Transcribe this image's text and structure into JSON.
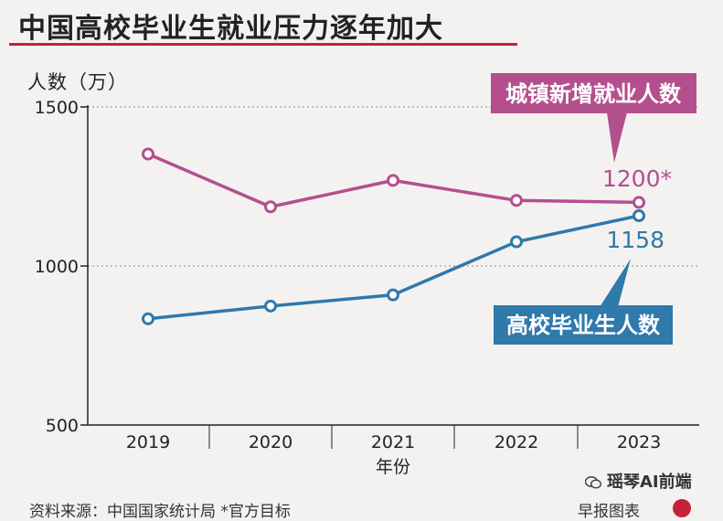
{
  "header": {
    "title": "中国高校毕业生就业压力逐年加大"
  },
  "chart_data": {
    "type": "line",
    "title": "中国高校毕业生就业压力逐年加大",
    "ylabel": "人数（万）",
    "xlabel": "年份",
    "categories": [
      "2019",
      "2020",
      "2021",
      "2022",
      "2023"
    ],
    "ylim": [
      500,
      1500
    ],
    "yticks": [
      500,
      1000,
      1500
    ],
    "grid": "dotted at 1000 and 1500",
    "series": [
      {
        "name": "城镇新增就业人数",
        "color": "#b44f8e",
        "values": [
          1352,
          1186,
          1269,
          1206,
          1200
        ],
        "end_label": "1200*"
      },
      {
        "name": "高校毕业生人数",
        "color": "#2f79ab",
        "values": [
          834,
          874,
          909,
          1076,
          1158
        ],
        "end_label": "1158"
      }
    ]
  },
  "footer": {
    "source": "资料来源：中国国家统计局 *官方目标",
    "brand": "早报图表",
    "watermark": "瑶琴AI前端"
  }
}
